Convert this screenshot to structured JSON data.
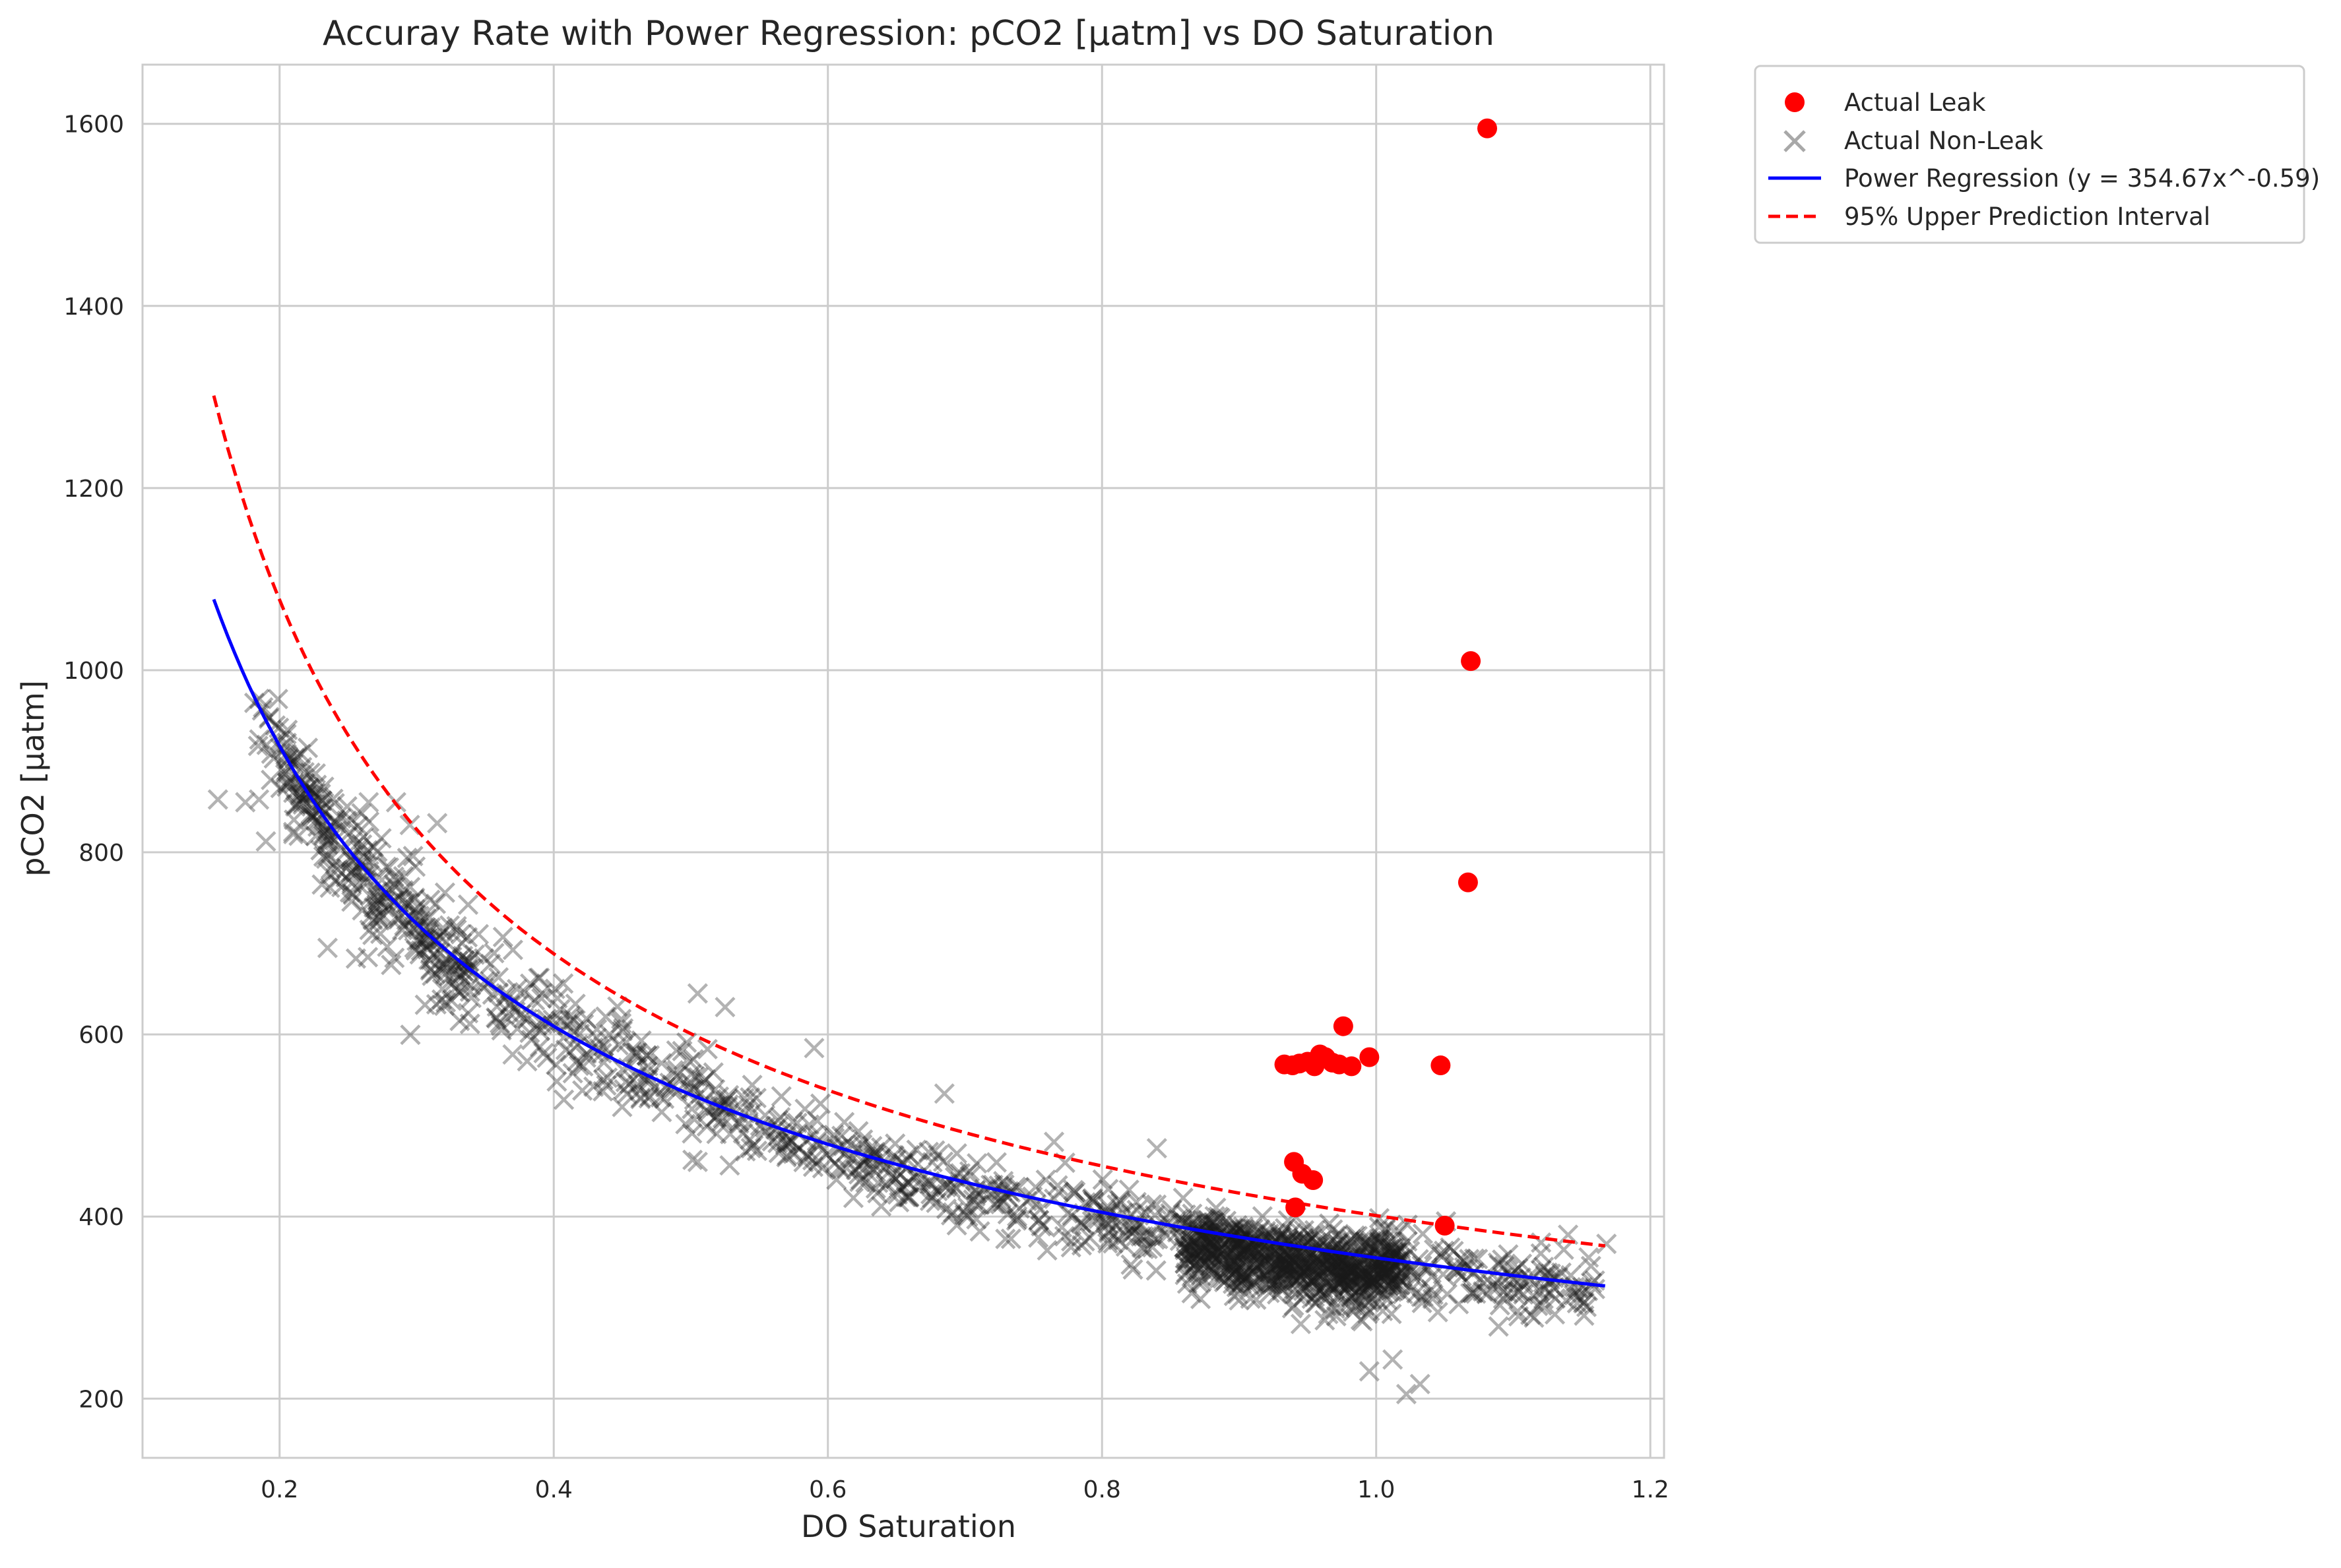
{
  "chart_data": {
    "type": "scatter",
    "title": "Accuray Rate with Power Regression: pCO2 [µatm] vs DO Saturation",
    "xlabel": "DO Saturation",
    "ylabel": "pCO2 [µatm]",
    "xlim": [
      0.1,
      1.21
    ],
    "ylim": [
      135,
      1665
    ],
    "x_ticks": [
      0.2,
      0.4,
      0.6,
      0.8,
      1.0,
      1.2
    ],
    "y_ticks": [
      200,
      400,
      600,
      800,
      1000,
      1200,
      1400,
      1600
    ],
    "x_tick_labels": [
      "0.2",
      "0.4",
      "0.6",
      "0.8",
      "1.0",
      "1.2"
    ],
    "y_tick_labels": [
      "200",
      "400",
      "600",
      "800",
      "1000",
      "1200",
      "1400",
      "1600"
    ],
    "grid": true,
    "legend_position": "outside upper right",
    "legend": [
      {
        "label": "Actual Leak",
        "marker": "circle",
        "color": "#ff0000"
      },
      {
        "label": "Actual Non-Leak",
        "marker": "x",
        "color": "#808080"
      },
      {
        "label": "Power Regression (y = 354.67x^-0.59)",
        "marker": "line",
        "color": "#0000ff"
      },
      {
        "label": "95% Upper Prediction Interval",
        "marker": "dashed-line",
        "color": "#ff0000"
      }
    ],
    "series": [
      {
        "name": "Actual Leak",
        "kind": "scatter",
        "color": "#ff0000",
        "points": [
          [
            1.081,
            1595
          ],
          [
            1.069,
            1010
          ],
          [
            1.067,
            767
          ],
          [
            0.976,
            609
          ],
          [
            0.995,
            575
          ],
          [
            1.047,
            566
          ],
          [
            0.933,
            567
          ],
          [
            0.939,
            566
          ],
          [
            0.944,
            568
          ],
          [
            0.95,
            570
          ],
          [
            0.955,
            565
          ],
          [
            0.959,
            578
          ],
          [
            0.963,
            575
          ],
          [
            0.968,
            569
          ],
          [
            0.973,
            567
          ],
          [
            0.982,
            565
          ],
          [
            0.94,
            460
          ],
          [
            0.946,
            447
          ],
          [
            0.954,
            440
          ],
          [
            0.941,
            410
          ],
          [
            1.05,
            390
          ]
        ]
      },
      {
        "name": "Actual Non-Leak",
        "kind": "scatter",
        "color": "#808080",
        "generated_cluster": true,
        "points": [
          [
            0.155,
            858
          ],
          [
            0.175,
            855
          ],
          [
            0.185,
            858
          ],
          [
            0.19,
            812
          ],
          [
            0.21,
            820
          ],
          [
            0.265,
            855
          ],
          [
            0.285,
            855
          ],
          [
            0.315,
            832
          ],
          [
            0.295,
            830
          ],
          [
            0.235,
            695
          ],
          [
            0.37,
            578
          ],
          [
            0.505,
            645
          ],
          [
            0.505,
            460
          ],
          [
            0.525,
            630
          ],
          [
            0.59,
            585
          ],
          [
            0.685,
            535
          ],
          [
            0.765,
            482
          ],
          [
            0.84,
            475
          ],
          [
            0.9,
            308
          ],
          [
            0.945,
            282
          ],
          [
            0.965,
            293
          ],
          [
            0.99,
            285
          ],
          [
            0.995,
            230
          ],
          [
            1.012,
            243
          ],
          [
            1.022,
            205
          ],
          [
            1.032,
            216
          ],
          [
            1.045,
            295
          ],
          [
            1.14,
            380
          ],
          [
            1.155,
            355
          ],
          [
            1.168,
            370
          ]
        ]
      },
      {
        "name": "Power Regression (y = 354.67x^-0.59)",
        "kind": "line",
        "color": "#0000ff",
        "dashed": false,
        "a": 354.67,
        "b": -0.59,
        "x_range": [
          0.152,
          1.167
        ]
      },
      {
        "name": "95% Upper Prediction Interval",
        "kind": "line",
        "color": "#ff0000",
        "dashed": true,
        "offset": 35,
        "a": 354.67,
        "b": -0.59,
        "extra_a": 11.4,
        "extra_b": -1.49,
        "x_range": [
          0.152,
          1.167
        ]
      }
    ]
  }
}
